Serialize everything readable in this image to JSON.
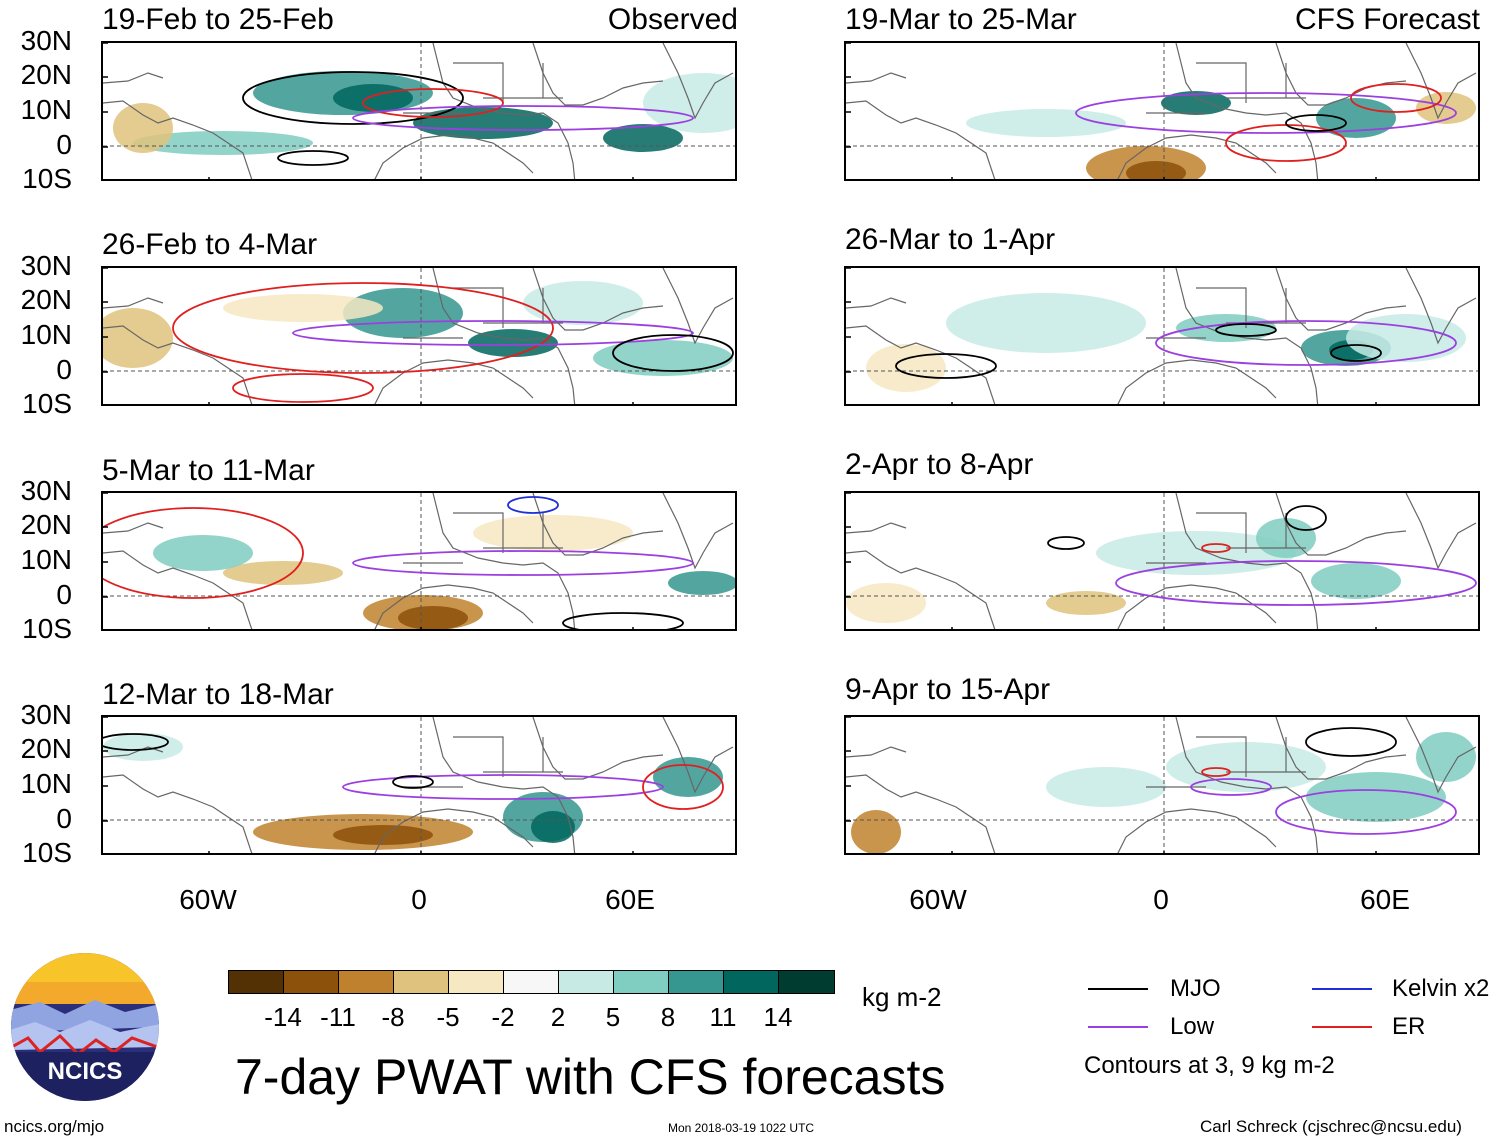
{
  "header": {
    "observed_label": "Observed",
    "forecast_label": "CFS Forecast"
  },
  "panels": [
    {
      "title": "19-Feb to 25-Feb"
    },
    {
      "title": "26-Feb to 4-Mar"
    },
    {
      "title": "5-Mar to 11-Mar"
    },
    {
      "title": "12-Mar to 18-Mar"
    },
    {
      "title": "19-Mar to 25-Mar"
    },
    {
      "title": "26-Mar to 1-Apr"
    },
    {
      "title": "2-Apr to 8-Apr"
    },
    {
      "title": "9-Apr to 15-Apr"
    }
  ],
  "axes": {
    "lat_labels": [
      "30N",
      "20N",
      "10N",
      "0",
      "10S"
    ],
    "lon_labels": [
      "60W",
      "0",
      "60E"
    ]
  },
  "colorbar": {
    "unit": "kg m-2",
    "labels": [
      "-14",
      "-11",
      "-8",
      "-5",
      "-2",
      "2",
      "5",
      "8",
      "11",
      "14"
    ],
    "colors": [
      "#543005",
      "#8c510a",
      "#bf812d",
      "#dfc27d",
      "#f6e8c3",
      "#f7f7f7",
      "#c7eae5",
      "#80cdc1",
      "#35978f",
      "#01665e",
      "#003c30"
    ]
  },
  "legend": {
    "items": [
      {
        "label": "MJO",
        "color": "#000000"
      },
      {
        "label": "Kelvin x2",
        "color": "#1f2fd6"
      },
      {
        "label": "Low",
        "color": "#9b3fe0"
      },
      {
        "label": "ER",
        "color": "#e01f1f"
      }
    ],
    "note": "Contours at 3, 9 kg m-2"
  },
  "footer": {
    "title": "7-day PWAT with CFS forecasts",
    "url": "ncics.org/mjo",
    "timestamp": "Mon 2018-03-19 1022 UTC",
    "credit": "Carl Schreck (cjschrec@ncsu.edu)",
    "logo_text": "NCICS"
  }
}
